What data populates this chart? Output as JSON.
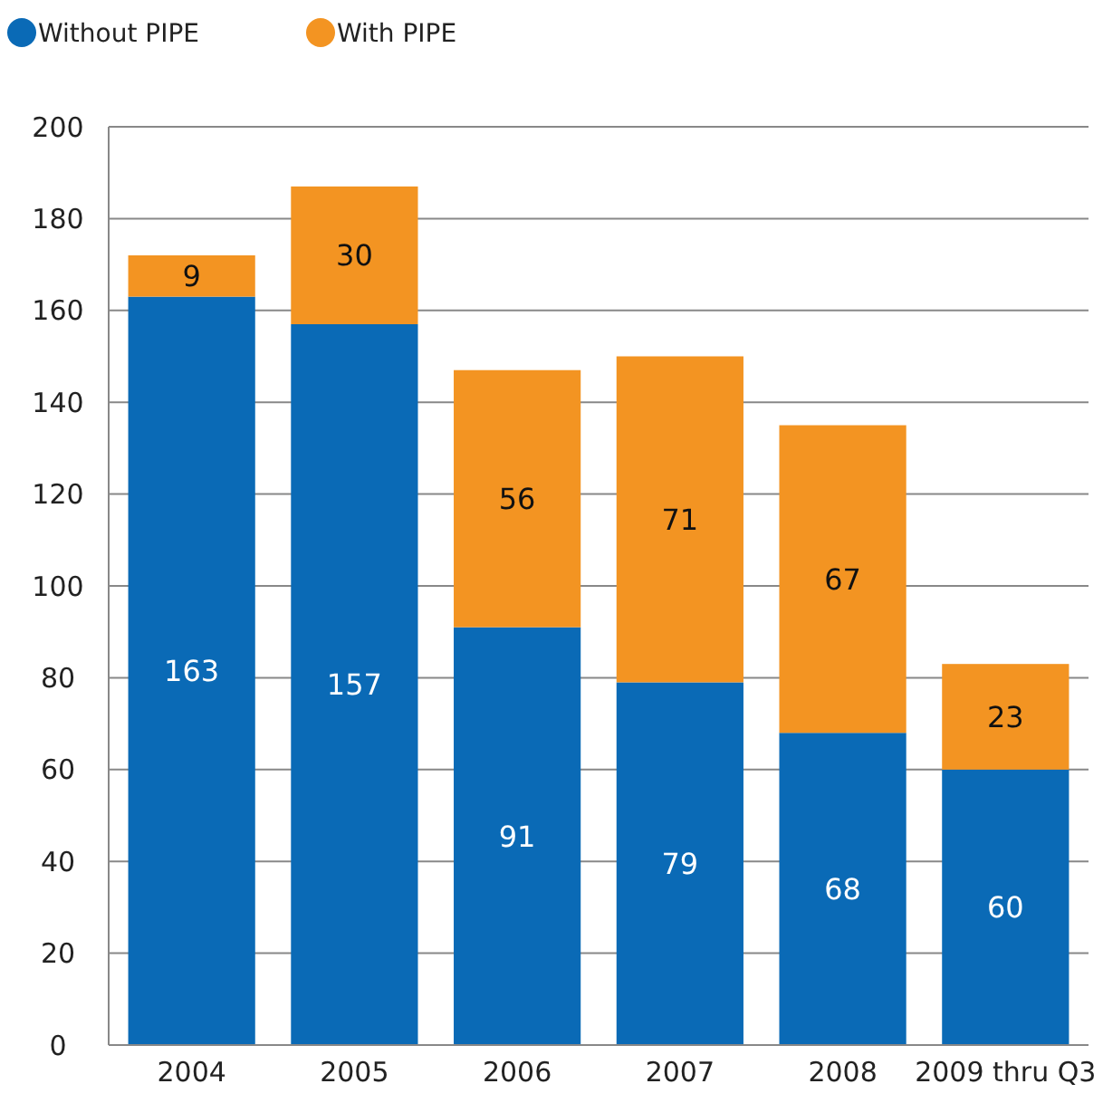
{
  "chart_data": {
    "type": "bar",
    "stacked": true,
    "categories": [
      "2004",
      "2005",
      "2006",
      "2007",
      "2008",
      "2009 thru Q3"
    ],
    "series": [
      {
        "name": "Without PIPE",
        "color": "#0a6ab6",
        "values": [
          163,
          157,
          91,
          79,
          68,
          60
        ]
      },
      {
        "name": "With PIPE",
        "color": "#f39422",
        "values": [
          9,
          30,
          56,
          71,
          67,
          23
        ]
      }
    ],
    "ylim": [
      0,
      200
    ],
    "yticks": [
      0,
      20,
      40,
      60,
      80,
      100,
      120,
      140,
      160,
      180,
      200
    ],
    "grid": "y",
    "legend": "top left",
    "data_labels": true
  }
}
